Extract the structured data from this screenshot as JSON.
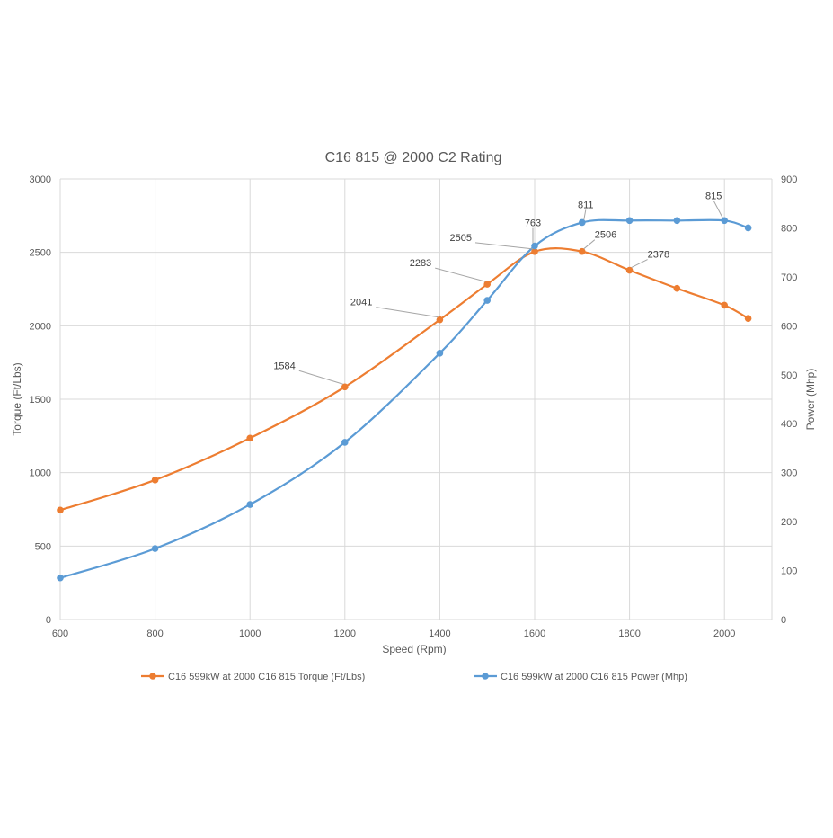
{
  "chart_data": {
    "type": "line",
    "title": "C16 815 @ 2000 C2 Rating",
    "xlabel": "Speed (Rpm)",
    "ylabel": "Torque (Ft/Lbs)",
    "y2label": "Power (Mhp)",
    "xlim": [
      600,
      2100
    ],
    "xticks": [
      600,
      800,
      1000,
      1200,
      1400,
      1600,
      1800,
      2000
    ],
    "ylim": [
      0,
      3000
    ],
    "yticks": [
      0,
      500,
      1000,
      1500,
      2000,
      2500,
      3000
    ],
    "y2lim": [
      0,
      900
    ],
    "y2ticks": [
      0,
      100,
      200,
      300,
      400,
      500,
      600,
      700,
      800,
      900
    ],
    "grid": true,
    "legend_position": "bottom",
    "series": [
      {
        "name": "C16 599kW at 2000 C16 815 Torque (Ft/Lbs)",
        "axis": "left",
        "color": "#ed7d31",
        "x": [
          600,
          800,
          1000,
          1200,
          1400,
          1500,
          1600,
          1700,
          1800,
          1900,
          2000,
          2050
        ],
        "y": [
          745,
          950,
          1235,
          1584,
          2041,
          2283,
          2505,
          2506,
          2378,
          2255,
          2140,
          2050
        ]
      },
      {
        "name": "C16 599kW at 2000 C16 815 Power (Mhp)",
        "axis": "right",
        "color": "#5b9bd5",
        "x": [
          600,
          800,
          1000,
          1200,
          1400,
          1500,
          1600,
          1700,
          1800,
          1900,
          2000,
          2050
        ],
        "y": [
          85,
          145,
          235,
          362,
          544,
          652,
          763,
          811,
          815,
          815,
          815,
          800
        ]
      }
    ],
    "annotations": [
      {
        "text": "1584",
        "series": 0,
        "x": 1200
      },
      {
        "text": "2041",
        "series": 0,
        "x": 1400
      },
      {
        "text": "2283",
        "series": 0,
        "x": 1500
      },
      {
        "text": "2505",
        "series": 0,
        "x": 1600
      },
      {
        "text": "2506",
        "series": 0,
        "x": 1700
      },
      {
        "text": "2378",
        "series": 0,
        "x": 1800
      },
      {
        "text": "763",
        "series": 1,
        "x": 1600
      },
      {
        "text": "811",
        "series": 1,
        "x": 1700
      },
      {
        "text": "815",
        "series": 1,
        "x": 2000
      }
    ]
  }
}
